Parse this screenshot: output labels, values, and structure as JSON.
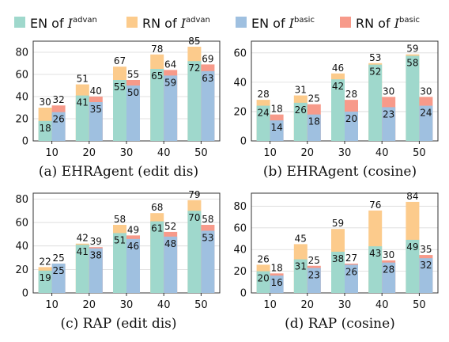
{
  "legend": [
    {
      "label": "EN of ",
      "sym": "I",
      "sup": "advan",
      "color": "#9fd8cc"
    },
    {
      "label": "RN of ",
      "sym": "I",
      "sup": "advan",
      "color": "#fccb8c"
    },
    {
      "label": "EN of ",
      "sym": "I",
      "sup": "basic",
      "color": "#9fc0e0"
    },
    {
      "label": "RN of ",
      "sym": "I",
      "sup": "basic",
      "color": "#f79a8a"
    }
  ],
  "chart_data": [
    {
      "type": "bar",
      "caption": "(a) EHRAgent (edit dis)",
      "categories": [
        "10",
        "20",
        "30",
        "40",
        "50"
      ],
      "ylim": [
        0,
        90
      ],
      "yticks": [
        0,
        20,
        40,
        60,
        80
      ],
      "series": [
        {
          "name": "EN of I^advan",
          "values": [
            18,
            41,
            55,
            65,
            72
          ]
        },
        {
          "name": "RN of I^advan",
          "values": [
            30,
            51,
            67,
            78,
            85
          ]
        },
        {
          "name": "EN of I^basic",
          "values": [
            26,
            35,
            50,
            59,
            63
          ]
        },
        {
          "name": "RN of I^basic",
          "values": [
            32,
            40,
            55,
            64,
            69
          ]
        }
      ]
    },
    {
      "type": "bar",
      "caption": "(b) EHRAgent (cosine)",
      "categories": [
        "10",
        "20",
        "30",
        "40",
        "50"
      ],
      "ylim": [
        0,
        68
      ],
      "yticks": [
        0,
        20,
        40,
        60
      ],
      "series": [
        {
          "name": "EN of I^advan",
          "values": [
            24,
            26,
            42,
            52,
            58
          ]
        },
        {
          "name": "RN of I^advan",
          "values": [
            28,
            31,
            46,
            53,
            59
          ]
        },
        {
          "name": "EN of I^basic",
          "values": [
            14,
            18,
            20,
            23,
            24
          ]
        },
        {
          "name": "RN of I^basic",
          "values": [
            18,
            25,
            28,
            30,
            30
          ]
        }
      ]
    },
    {
      "type": "bar",
      "caption": "(c) RAP (edit dis)",
      "categories": [
        "10",
        "20",
        "30",
        "40",
        "50"
      ],
      "ylim": [
        0,
        85
      ],
      "yticks": [
        0,
        20,
        40,
        60,
        80
      ],
      "series": [
        {
          "name": "EN of I^advan",
          "values": [
            19,
            41,
            51,
            61,
            70
          ]
        },
        {
          "name": "RN of I^advan",
          "values": [
            22,
            42,
            58,
            68,
            79
          ]
        },
        {
          "name": "EN of I^basic",
          "values": [
            25,
            38,
            46,
            48,
            53
          ]
        },
        {
          "name": "RN of I^basic",
          "values": [
            25,
            39,
            49,
            52,
            58
          ]
        }
      ]
    },
    {
      "type": "bar",
      "caption": "(d) RAP (cosine)",
      "categories": [
        "10",
        "20",
        "30",
        "40",
        "50"
      ],
      "ylim": [
        0,
        92
      ],
      "yticks": [
        0,
        20,
        40,
        60,
        80
      ],
      "series": [
        {
          "name": "EN of I^advan",
          "values": [
            20,
            31,
            38,
            43,
            49
          ]
        },
        {
          "name": "RN of I^advan",
          "values": [
            26,
            45,
            59,
            76,
            84
          ]
        },
        {
          "name": "EN of I^basic",
          "values": [
            16,
            23,
            26,
            28,
            32
          ]
        },
        {
          "name": "RN of I^basic",
          "values": [
            18,
            25,
            27,
            30,
            35
          ]
        }
      ]
    }
  ]
}
